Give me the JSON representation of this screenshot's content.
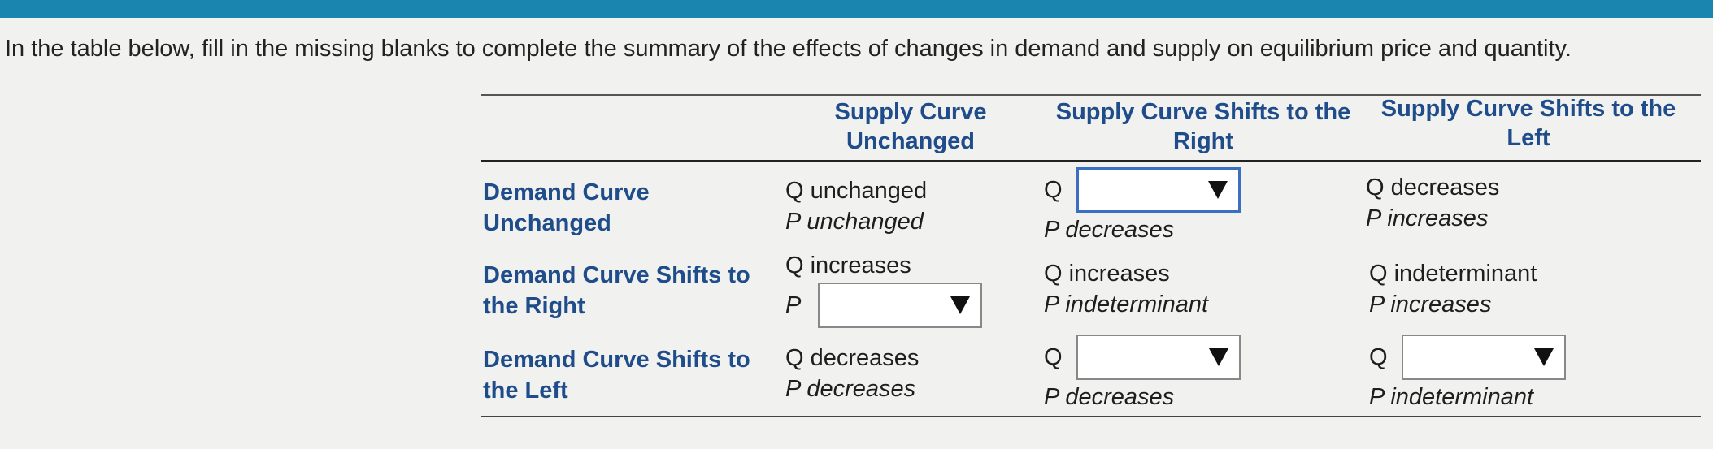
{
  "instruction": "In the table below, fill in the missing blanks to complete the summary of the effects of changes in demand and supply on equilibrium price and quantity.",
  "columns": {
    "supply_unchanged": [
      "Supply Curve",
      "Unchanged"
    ],
    "supply_right": [
      "Supply Curve Shifts to the",
      "Right"
    ],
    "supply_left": [
      "Supply Curve Shifts to the",
      "Left"
    ]
  },
  "rows": {
    "demand_unchanged": [
      "Demand Curve",
      "Unchanged"
    ],
    "demand_right": [
      "Demand Curve Shifts to",
      "the Right"
    ],
    "demand_left": [
      "Demand Curve Shifts to",
      "the Left"
    ]
  },
  "cells": {
    "du_su": [
      "Q unchanged",
      "P unchanged"
    ],
    "du_sr": {
      "q_label": "Q",
      "q_value": "",
      "p": "P decreases"
    },
    "du_sl": [
      "Q decreases",
      "P increases"
    ],
    "dr_su": {
      "q": "Q increases",
      "p_label": "P",
      "p_value": ""
    },
    "dr_sr": [
      "Q increases",
      "P indeterminant"
    ],
    "dr_sl": [
      "Q indeterminant",
      "P increases"
    ],
    "dl_su": [
      "Q decreases",
      "P decreases"
    ],
    "dl_sr": {
      "q_label": "Q",
      "q_value": "",
      "p": "P decreases"
    },
    "dl_sl": {
      "q_label": "Q",
      "q_value": "",
      "p": "P indeterminant"
    }
  },
  "colors": {
    "accent_bar": "#1a86b0",
    "heading_blue": "#1f4c8a",
    "focus_border": "#3b6fc2"
  },
  "icons": {
    "dropdown": "caret-down-icon"
  }
}
